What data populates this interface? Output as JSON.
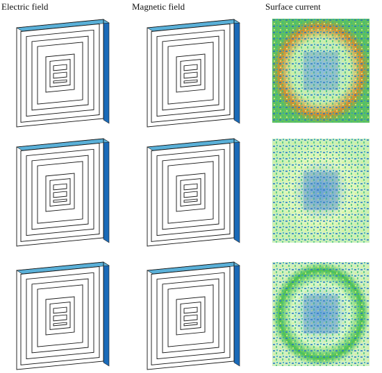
{
  "columns": [
    {
      "title": "Electric field"
    },
    {
      "title": "Magnetic field"
    },
    {
      "title": "Surface current"
    }
  ]
}
